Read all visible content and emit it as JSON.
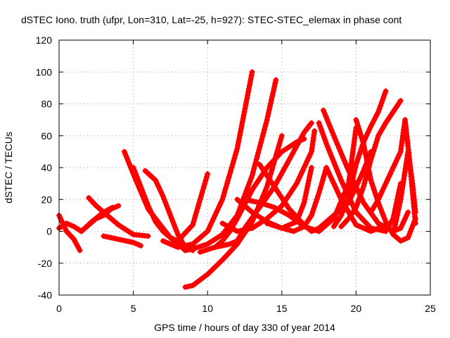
{
  "chart_data": {
    "type": "scatter",
    "title": "dSTEC Iono. truth (ufpr, Lon=310, Lat=-25, h=927): STEC-STEC_elemax in phase cont",
    "xlabel": "GPS time / hours of day 330 of year 2014",
    "ylabel": "dSTEC  / TECUs",
    "xlim": [
      0,
      25
    ],
    "ylim": [
      -40,
      120
    ],
    "xticks": [
      0,
      5,
      10,
      15,
      20,
      25
    ],
    "yticks": [
      -40,
      -20,
      0,
      20,
      40,
      60,
      80,
      100,
      120
    ],
    "grid": true,
    "marker": "+",
    "color": "#ff0000",
    "series": [
      {
        "x": [
          0.0,
          0.5,
          1.0,
          1.4
        ],
        "y": [
          10,
          0,
          -5,
          -12
        ]
      },
      {
        "x": [
          0.0,
          0.5,
          1.0,
          1.5,
          2.0,
          2.5,
          3.0,
          3.5,
          4.0
        ],
        "y": [
          2,
          5,
          3,
          0,
          4,
          8,
          10,
          14,
          16
        ]
      },
      {
        "x": [
          1.5,
          2.2,
          3.0,
          3.6
        ],
        "y": [
          0,
          6,
          12,
          15
        ]
      },
      {
        "x": [
          2.0,
          2.5,
          3.0,
          3.5,
          4.0,
          5.0,
          6.0
        ],
        "y": [
          21,
          16,
          12,
          8,
          4,
          -2,
          -3
        ]
      },
      {
        "x": [
          3.0,
          3.5,
          4.0,
          4.5,
          5.0,
          5.5
        ],
        "y": [
          -3,
          -4,
          -5,
          -6,
          -7,
          -9
        ]
      },
      {
        "x": [
          4.4,
          5.0,
          6.0,
          7.0,
          7.5,
          8.0,
          9.0,
          10.0
        ],
        "y": [
          50,
          36,
          14,
          2,
          -4,
          -6,
          4,
          36
        ]
      },
      {
        "x": [
          5.0,
          5.5,
          6.0,
          6.5,
          7.0,
          7.5,
          8.0,
          8.5
        ],
        "y": [
          40,
          28,
          16,
          6,
          0,
          -4,
          -8,
          -12
        ]
      },
      {
        "x": [
          5.8,
          6.5,
          7.0,
          7.5,
          8.0,
          8.5,
          9.0
        ],
        "y": [
          38,
          32,
          22,
          10,
          -2,
          -10,
          -12
        ]
      },
      {
        "x": [
          7.0,
          7.5,
          8.0,
          9.0,
          10.0,
          11.0,
          12.0,
          13.0
        ],
        "y": [
          -6,
          -8,
          -10,
          -8,
          0,
          20,
          52,
          100
        ]
      },
      {
        "x": [
          8.5,
          9.0,
          10.0,
          11.0,
          12.0,
          13.0,
          14.0,
          14.6
        ],
        "y": [
          -12,
          -11,
          -8,
          -2,
          10,
          35,
          70,
          95
        ]
      },
      {
        "x": [
          8.5,
          9.0,
          10.0,
          11.0,
          12.0,
          13.0,
          14.0,
          15.0
        ],
        "y": [
          -35,
          -34,
          -27,
          -18,
          -8,
          6,
          28,
          60
        ]
      },
      {
        "x": [
          9.5,
          10.5,
          11.5,
          12.0,
          12.5,
          13.5,
          14.5,
          15.5,
          16.5,
          17.0
        ],
        "y": [
          -13,
          -10,
          -8,
          -6,
          2,
          15,
          28,
          45,
          62,
          68
        ]
      },
      {
        "x": [
          10.5,
          11.0,
          11.5,
          12.0,
          13.0,
          14.0,
          15.0,
          16.0,
          16.5
        ],
        "y": [
          -10,
          -6,
          0,
          8,
          26,
          40,
          50,
          56,
          58
        ]
      },
      {
        "x": [
          11.0,
          12.0,
          13.0,
          14.0,
          15.0,
          16.0,
          17.0,
          17.2
        ],
        "y": [
          5,
          0,
          2,
          8,
          16,
          30,
          50,
          63
        ]
      },
      {
        "x": [
          12.0,
          13.0,
          14.0,
          15.0,
          16.0,
          16.5,
          17.0
        ],
        "y": [
          20,
          12,
          6,
          2,
          6,
          18,
          40
        ]
      },
      {
        "x": [
          12.5,
          13.5,
          14.5,
          15.5,
          16.5,
          17.5,
          18.5,
          19.5,
          20.0
        ],
        "y": [
          20,
          18,
          15,
          10,
          3,
          0,
          8,
          30,
          65
        ]
      },
      {
        "x": [
          13.5,
          14.5,
          15.5,
          16.5,
          17.0,
          17.5,
          18.5,
          19.5,
          20.5,
          21.0
        ],
        "y": [
          42,
          28,
          14,
          4,
          0,
          2,
          10,
          18,
          38,
          50
        ]
      },
      {
        "x": [
          14.0,
          15.0,
          15.8,
          16.5,
          17.0,
          17.5,
          18.0,
          19.0,
          20.0,
          21.0,
          22.0
        ],
        "y": [
          5,
          2,
          0,
          3,
          10,
          24,
          40,
          20,
          4,
          0,
          4
        ]
      },
      {
        "x": [
          17.5,
          18.0,
          19.0,
          20.0,
          21.0,
          22.0,
          22.5,
          23.0
        ],
        "y": [
          68,
          55,
          32,
          12,
          2,
          0,
          8,
          30
        ]
      },
      {
        "x": [
          17.8,
          18.5,
          19.5,
          20.5,
          21.5,
          22.5,
          23.0,
          23.5
        ],
        "y": [
          76,
          60,
          38,
          18,
          5,
          0,
          2,
          12
        ]
      },
      {
        "x": [
          18.5,
          19.0,
          19.5,
          20.0,
          20.5,
          21.0,
          21.5,
          22.0
        ],
        "y": [
          3,
          10,
          22,
          42,
          56,
          66,
          75,
          88
        ]
      },
      {
        "x": [
          19.0,
          19.5,
          20.0,
          20.5,
          21.0,
          21.5,
          22.0,
          22.5,
          23.0
        ],
        "y": [
          3,
          8,
          15,
          28,
          45,
          60,
          68,
          75,
          82
        ]
      },
      {
        "x": [
          20.0,
          20.5,
          21.0,
          21.5,
          22.0,
          22.5,
          23.0,
          23.5,
          24.0
        ],
        "y": [
          70,
          55,
          32,
          18,
          6,
          -2,
          -6,
          -4,
          8
        ]
      },
      {
        "x": [
          21.0,
          21.5,
          22.0,
          22.5,
          23.0,
          23.3,
          23.6,
          24.0
        ],
        "y": [
          12,
          20,
          30,
          40,
          50,
          70,
          45,
          5
        ]
      },
      {
        "x": [
          22.5,
          23.0,
          23.5,
          23.8,
          24.0
        ],
        "y": [
          -2,
          20,
          50,
          30,
          12
        ]
      }
    ]
  }
}
